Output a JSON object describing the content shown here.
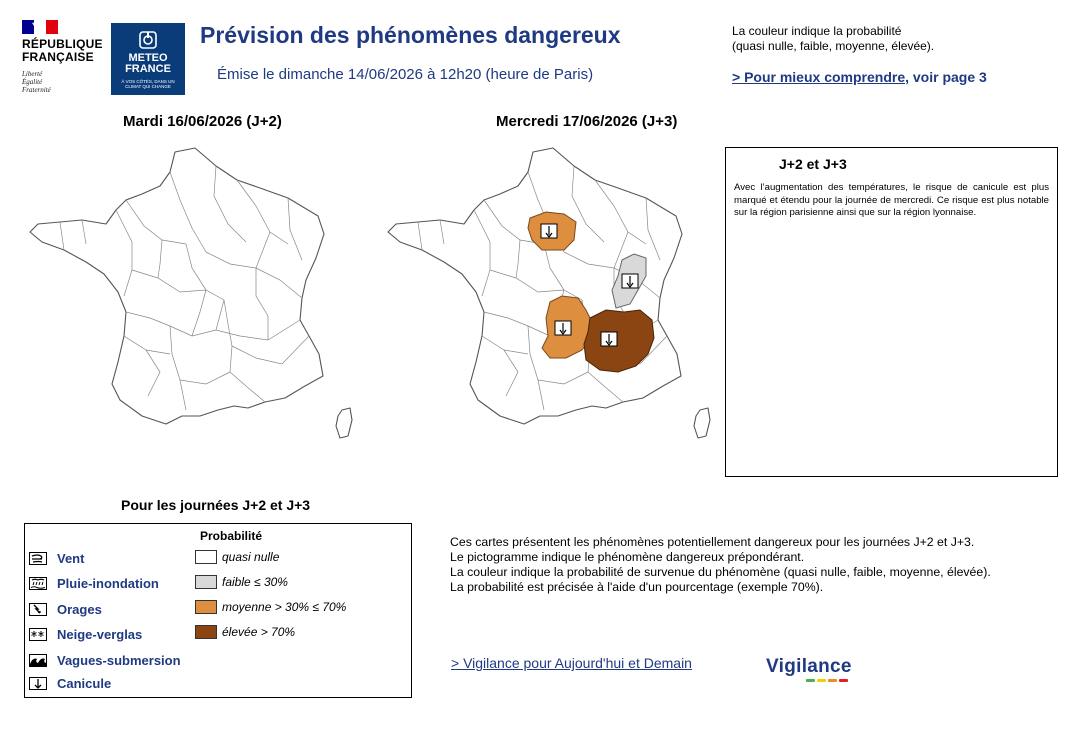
{
  "header": {
    "republique": [
      "RÉPUBLIQUE",
      "FRANÇAISE"
    ],
    "motto": [
      "Liberté",
      "Égalité",
      "Fraternité"
    ],
    "meteo_name": [
      "METEO",
      "FRANCE"
    ],
    "meteo_tagline": "À VOS CÔTÉS, DANS UN CLIMAT QUI CHANGE",
    "title": "Prévision des phénomènes dangereux",
    "subtitle": "Émise le dimanche 14/06/2026 à 12h20 (heure de Paris)",
    "prob_note": [
      "La couleur indique la probabilité",
      "(quasi nulle, faible, moyenne, élevée)."
    ],
    "comprendre_link": "> Pour mieux comprendre",
    "comprendre_rest": ", voir page 3"
  },
  "maps": [
    {
      "title": "Mardi 16/06/2026 (J+2)"
    },
    {
      "title": "Mercredi 17/06/2026 (J+3)"
    }
  ],
  "commentary": {
    "heading": "J+2 et J+3",
    "text": "Avec l’augmentation des températures, le risque de canicule est plus marqué et étendu pour la journée de mercredi. Ce risque est plus notable sur la région parisienne ainsi que sur la région lyonnaise."
  },
  "legend": {
    "title": "Pour les journées J+2 et J+3",
    "prob_heading": "Probabilité",
    "phenomena": [
      {
        "label": "Vent",
        "icon": "wind-icon"
      },
      {
        "label": "Pluie-inondation",
        "icon": "rain-flood-icon"
      },
      {
        "label": "Orages",
        "icon": "storm-icon"
      },
      {
        "label": "Neige-verglas",
        "icon": "snow-ice-icon"
      },
      {
        "label": "Vagues-submersion",
        "icon": "waves-icon"
      },
      {
        "label": "Canicule",
        "icon": "heatwave-icon"
      }
    ],
    "probabilities": [
      {
        "label": "quasi nulle",
        "color": "#ffffff"
      },
      {
        "label": "faible ≤ 30%",
        "color": "#d9d9d9"
      },
      {
        "label": "moyenne > 30% ≤ 70%",
        "color": "#dd8e3e"
      },
      {
        "label": "élevée > 70%",
        "color": "#8b4513"
      }
    ]
  },
  "explanation": [
    "Ces cartes présentent les phénomènes potentiellement dangereux pour les journées J+2 et J+3.",
    "Le pictogramme indique le phénomène dangereux prépondérant.",
    "La couleur indique la probabilité de survenue du phénomène (quasi nulle, faible, moyenne, élevée).",
    "La probabilité est précisée à l'aide d'un pourcentage (exemple 70%)."
  ],
  "vigilance_link": "> Vigilance pour Aujourd'hui et Demain",
  "vigilance_logo": "Vigilance",
  "colors": {
    "brand_blue": "#1f3a82",
    "meteo_blue": "#0a3c7a",
    "vigilance_bar": [
      "#4caf50",
      "#f2d000",
      "#f08a24",
      "#e02020"
    ]
  }
}
